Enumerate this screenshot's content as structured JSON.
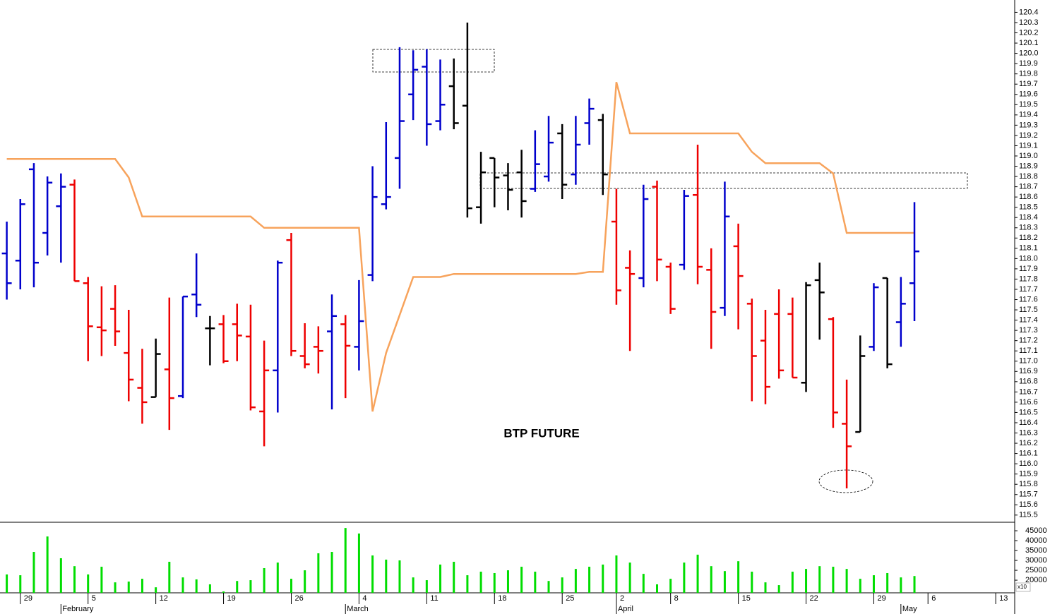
{
  "chart_data": [
    {
      "type": "ohlc",
      "title": "BTP FUTURE",
      "open": [
        118.05,
        117.98,
        118.87,
        118.25,
        118.51,
        118.72,
        117.76,
        117.33,
        117.51,
        117.08,
        116.74,
        116.65,
        116.92,
        116.66,
        117.65,
        117.32,
        117.36,
        117.36,
        117.24,
        116.51,
        116.91,
        118.18,
        117.05,
        117.14,
        117.29,
        117.36,
        117.14,
        117.84,
        118.53,
        118.98,
        119.6,
        119.87,
        119.34,
        119.68,
        119.49,
        118.5,
        118.98,
        118.81,
        118.84,
        118.68,
        118.8,
        119.22,
        118.82,
        119.32,
        119.35,
        118.36,
        117.91,
        117.81,
        118.7,
        117.92,
        117.94,
        118.62,
        117.89,
        117.52,
        118.12,
        117.56,
        117.2,
        117.46,
        117.46,
        116.79,
        117.79,
        117.41,
        116.39,
        116.31,
        117.14,
        117.81,
        117.38,
        117.76
      ],
      "high": [
        118.36,
        118.58,
        118.93,
        118.8,
        118.83,
        118.77,
        117.82,
        117.73,
        117.74,
        117.5,
        117.12,
        117.22,
        117.62,
        117.63,
        118.05,
        117.44,
        117.45,
        117.56,
        117.55,
        117.2,
        117.98,
        118.25,
        117.37,
        117.34,
        117.65,
        117.45,
        117.79,
        118.9,
        119.33,
        120.06,
        120.03,
        120.04,
        119.94,
        119.95,
        120.3,
        119.04,
        118.98,
        118.93,
        119.06,
        119.25,
        119.39,
        119.31,
        119.39,
        119.56,
        119.41,
        118.68,
        118.08,
        118.72,
        118.76,
        117.96,
        118.67,
        119.11,
        118.1,
        118.75,
        118.34,
        117.61,
        117.5,
        117.7,
        117.62,
        117.77,
        117.96,
        117.43,
        116.82,
        117.25,
        117.76,
        117.81,
        117.82,
        118.55
      ],
      "low": [
        117.6,
        117.7,
        117.72,
        118.03,
        117.96,
        117.78,
        117.0,
        117.05,
        117.15,
        116.61,
        116.39,
        116.65,
        116.33,
        116.64,
        117.43,
        116.96,
        116.98,
        117.0,
        116.52,
        116.17,
        116.5,
        117.05,
        116.93,
        116.88,
        116.53,
        116.64,
        116.91,
        117.78,
        118.48,
        118.68,
        119.35,
        119.1,
        119.25,
        119.26,
        118.4,
        118.34,
        118.5,
        118.47,
        118.4,
        118.65,
        118.75,
        118.58,
        118.72,
        119.11,
        118.62,
        117.55,
        117.1,
        117.72,
        117.78,
        117.46,
        117.89,
        117.75,
        117.12,
        117.44,
        117.31,
        116.61,
        116.58,
        116.83,
        116.84,
        116.7,
        117.21,
        116.35,
        115.76,
        116.31,
        117.1,
        116.93,
        117.14,
        117.39
      ],
      "close": [
        117.76,
        118.53,
        117.96,
        118.74,
        118.7,
        117.78,
        117.34,
        117.3,
        117.29,
        116.82,
        116.6,
        117.07,
        116.64,
        117.63,
        117.55,
        117.32,
        117.0,
        117.25,
        116.55,
        116.91,
        117.96,
        117.1,
        116.97,
        117.1,
        117.44,
        117.15,
        117.39,
        118.6,
        118.6,
        119.34,
        119.84,
        119.31,
        119.5,
        119.32,
        118.49,
        118.84,
        118.79,
        118.67,
        118.56,
        118.92,
        119.13,
        118.72,
        119.11,
        119.46,
        118.82,
        117.69,
        117.85,
        118.58,
        117.99,
        117.51,
        118.61,
        117.92,
        117.48,
        118.41,
        117.83,
        117.05,
        116.75,
        116.91,
        116.84,
        117.74,
        117.67,
        116.5,
        116.17,
        117.05,
        117.72,
        116.97,
        117.56,
        118.07
      ],
      "bar_colors": [
        "#0000cc",
        "#0000cc",
        "#0000cc",
        "#0000cc",
        "#0000cc",
        "#ee0000",
        "#ee0000",
        "#ee0000",
        "#ee0000",
        "#ee0000",
        "#ee0000",
        "#000000",
        "#ee0000",
        "#0000cc",
        "#0000cc",
        "#000000",
        "#ee0000",
        "#ee0000",
        "#ee0000",
        "#ee0000",
        "#0000cc",
        "#ee0000",
        "#ee0000",
        "#ee0000",
        "#0000cc",
        "#ee0000",
        "#0000cc",
        "#0000cc",
        "#0000cc",
        "#0000cc",
        "#0000cc",
        "#0000cc",
        "#0000cc",
        "#000000",
        "#000000",
        "#000000",
        "#000000",
        "#000000",
        "#000000",
        "#0000cc",
        "#0000cc",
        "#000000",
        "#0000cc",
        "#0000cc",
        "#000000",
        "#ee0000",
        "#ee0000",
        "#0000cc",
        "#ee0000",
        "#ee0000",
        "#0000cc",
        "#ee0000",
        "#ee0000",
        "#0000cc",
        "#ee0000",
        "#ee0000",
        "#ee0000",
        "#ee0000",
        "#ee0000",
        "#000000",
        "#000000",
        "#ee0000",
        "#ee0000",
        "#000000",
        "#0000cc",
        "#000000",
        "#0000cc",
        "#0000cc"
      ],
      "overlay_line": {
        "color": "#f7a35c",
        "values": [
          118.97,
          118.97,
          118.97,
          118.97,
          118.97,
          118.97,
          118.97,
          118.97,
          118.97,
          118.79,
          118.41,
          118.41,
          118.41,
          118.41,
          118.41,
          118.41,
          118.41,
          118.41,
          118.41,
          118.3,
          118.3,
          118.3,
          118.3,
          118.3,
          118.3,
          118.3,
          118.3,
          116.51,
          117.08,
          117.45,
          117.82,
          117.82,
          117.82,
          117.85,
          117.85,
          117.85,
          117.85,
          117.85,
          117.85,
          117.85,
          117.85,
          117.85,
          117.85,
          117.87,
          117.87,
          119.72,
          119.22,
          119.22,
          119.22,
          119.22,
          119.22,
          119.22,
          119.22,
          119.22,
          119.22,
          119.04,
          118.93,
          118.93,
          118.93,
          118.93,
          118.93,
          118.83,
          118.25,
          118.25,
          118.25,
          118.25,
          118.25,
          118.25
        ]
      },
      "xlim": [
        -0.5,
        74.4
      ],
      "ylim": [
        115.43,
        120.52
      ],
      "yticks": [
        115.5,
        115.6,
        115.7,
        115.8,
        115.9,
        {
          "value": 116,
          "label": "116.0"
        },
        116.1,
        116.2,
        116.3,
        116.4,
        116.5,
        116.6,
        116.7,
        116.8,
        116.9,
        {
          "value": 117,
          "label": "117.0"
        },
        117.1,
        117.2,
        117.3,
        117.4,
        117.5,
        117.6,
        117.7,
        117.8,
        117.9,
        {
          "value": 118,
          "label": "118.0"
        },
        118.1,
        118.2,
        118.3,
        118.4,
        118.5,
        118.6,
        118.7,
        118.8,
        118.9,
        {
          "value": 119,
          "label": "119.0"
        },
        119.1,
        119.2,
        119.3,
        119.4,
        119.5,
        119.6,
        119.7,
        119.8,
        119.9,
        {
          "value": 120,
          "label": "120.0"
        },
        120.1,
        120.2,
        120.3,
        120.4
      ]
    },
    {
      "type": "bar",
      "color": "#00dd00",
      "values": [
        22900,
        22500,
        34300,
        42100,
        31100,
        27100,
        22900,
        26800,
        18900,
        19300,
        20700,
        16400,
        29300,
        21400,
        20400,
        17900,
        14300,
        19600,
        20000,
        26100,
        28900,
        20700,
        25000,
        33600,
        34300,
        46400,
        43600,
        32500,
        30400,
        30000,
        21400,
        20000,
        27900,
        29300,
        22500,
        24300,
        23600,
        25000,
        26800,
        24300,
        19600,
        21400,
        25700,
        26800,
        27900,
        32500,
        28900,
        23200,
        17900,
        20700,
        28900,
        32900,
        27100,
        24600,
        29600,
        24300,
        18900,
        17500,
        24300,
        25700,
        27100,
        26800,
        25700,
        20700,
        22500,
        23600,
        21400,
        22100
      ],
      "xlim": [
        -0.5,
        74.4
      ],
      "ylim": [
        13600,
        49300
      ],
      "yticks": [
        20000,
        25000,
        30000,
        35000,
        40000,
        45000
      ],
      "axis_note": "x10",
      "xticks": [
        {
          "value": 1,
          "label": "29"
        },
        {
          "value": 6,
          "label": "5"
        },
        {
          "value": 11,
          "label": "12"
        },
        {
          "value": 16,
          "label": "19"
        },
        {
          "value": 21,
          "label": "26"
        },
        {
          "value": 26,
          "label": "4"
        },
        {
          "value": 31,
          "label": "11"
        },
        {
          "value": 36,
          "label": "18"
        },
        {
          "value": 41,
          "label": "25"
        },
        {
          "value": 45,
          "label": "2"
        },
        {
          "value": 49,
          "label": "8"
        },
        {
          "value": 54,
          "label": "15"
        },
        {
          "value": 59,
          "label": "22"
        },
        {
          "value": 64,
          "label": "29"
        },
        {
          "value": 68,
          "label": "6"
        },
        {
          "value": 73,
          "label": "13"
        }
      ],
      "month_ticks": [
        {
          "value": 4,
          "label": "February"
        },
        {
          "value": 25,
          "label": "March"
        },
        {
          "value": 45,
          "label": "April"
        },
        {
          "value": 66,
          "label": "May"
        }
      ]
    }
  ]
}
